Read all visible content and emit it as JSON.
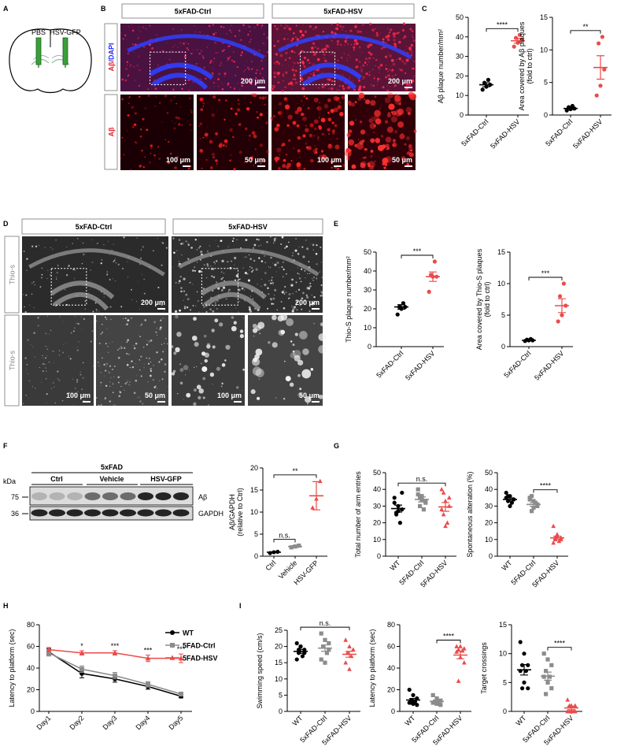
{
  "figure": {
    "panel_labels": [
      "A",
      "B",
      "C",
      "D",
      "E",
      "F",
      "G",
      "H",
      "I"
    ],
    "a": {
      "labels": [
        "PBS",
        "HSV-GFP"
      ]
    },
    "b": {
      "headers": [
        "5xFAD-Ctrl",
        "5xFAD-HSV"
      ],
      "row_labels": [
        [
          "Aβ",
          "/DAPI"
        ],
        [
          "Aβ"
        ]
      ],
      "scale_bars": [
        "200 μm",
        "200 μm",
        "100 μm",
        "50 μm",
        "100 μm",
        "50 μm"
      ]
    },
    "d": {
      "headers": [
        "5xFAD-Ctrl",
        "5xFAD-HSV"
      ],
      "row_labels": [
        "Thio-s",
        "Thio-s"
      ],
      "scale_bars": [
        "200 μm",
        "200 μm",
        "100 μm",
        "50 μm",
        "100 μm",
        "50 μm"
      ]
    },
    "f": {
      "group": "5xFAD",
      "lanes": [
        "Ctrl",
        "Vehicle",
        "HSV-GFP"
      ],
      "kda_label": "kDa",
      "markers": [
        75,
        36
      ],
      "bands": [
        "Aβ",
        "GAPDH"
      ]
    }
  },
  "chart_data": [
    {
      "type": "dot",
      "ylabel": [
        "Aβ plaque number/mm²"
      ],
      "categories": [
        "5xFAD-Ctrl",
        "5xFAD-HSV"
      ],
      "colors": [
        "#000000",
        "#eb4b4b"
      ],
      "markers": [
        "circle",
        "circle"
      ],
      "values": [
        15.5,
        38
      ],
      "errors": [
        1.0,
        1.2
      ],
      "points": [
        [
          13,
          14.5,
          15.5,
          16.5,
          18
        ],
        [
          35,
          37,
          38.5,
          39.5,
          41
        ]
      ],
      "ylim": [
        0,
        50
      ],
      "yticks": [
        0,
        10,
        20,
        30,
        40,
        50
      ],
      "significance": [
        {
          "label": "****",
          "groups": [
            "5xFAD-Ctrl",
            "5xFAD-HSV"
          ]
        }
      ]
    },
    {
      "type": "dot",
      "ylabel": [
        "Area covered by Aβ plaques",
        "(fold to ctrl)"
      ],
      "categories": [
        "5xFAD-Ctrl",
        "5xFAD-HSV"
      ],
      "colors": [
        "#000000",
        "#eb4b4b"
      ],
      "markers": [
        "circle",
        "circle"
      ],
      "values": [
        1.0,
        7.3
      ],
      "errors": [
        0.15,
        1.8
      ],
      "points": [
        [
          0.7,
          0.9,
          1.0,
          1.2,
          1.4
        ],
        [
          3,
          4.5,
          7,
          11,
          12
        ]
      ],
      "ylim": [
        0,
        15
      ],
      "yticks": [
        0,
        5,
        10,
        15
      ],
      "significance": [
        {
          "label": "**",
          "groups": [
            "5xFAD-Ctrl",
            "5xFAD-HSV"
          ]
        }
      ]
    },
    {
      "type": "dot",
      "ylabel": [
        "Thio-S plaque number/mm²"
      ],
      "categories": [
        "5xFAD-Ctrl",
        "5xFAD-HSV"
      ],
      "colors": [
        "#000000",
        "#eb4b4b"
      ],
      "markers": [
        "circle",
        "circle"
      ],
      "values": [
        21,
        37
      ],
      "errors": [
        1.2,
        2.5
      ],
      "points": [
        [
          17,
          20,
          21,
          21,
          23
        ],
        [
          29,
          37,
          37,
          38,
          45
        ]
      ],
      "ylim": [
        0,
        50
      ],
      "yticks": [
        0,
        10,
        20,
        30,
        40,
        50
      ],
      "significance": [
        {
          "label": "***",
          "groups": [
            "5xFAD-Ctrl",
            "5xFAD-HSV"
          ]
        }
      ]
    },
    {
      "type": "dot",
      "ylabel": [
        "Area covered by Thio-S plaques",
        "(fold to ctrl)"
      ],
      "categories": [
        "5xFAD-Ctrl",
        "5xFAD-HSV"
      ],
      "colors": [
        "#000000",
        "#eb4b4b"
      ],
      "markers": [
        "circle",
        "circle"
      ],
      "values": [
        1.0,
        6.5
      ],
      "errors": [
        0.05,
        1.1
      ],
      "points": [
        [
          0.9,
          1.0,
          1.0,
          1.1,
          1.2
        ],
        [
          4,
          5,
          6.5,
          8,
          10
        ]
      ],
      "ylim": [
        0,
        15
      ],
      "yticks": [
        0,
        5,
        10,
        15
      ],
      "significance": [
        {
          "label": "***",
          "groups": [
            "5xFAD-Ctrl",
            "5xFAD-HSV"
          ]
        }
      ]
    },
    {
      "type": "dot",
      "ylabel": [
        "Aβ/GAPDH",
        "(relative to Ctrl)"
      ],
      "categories": [
        "Ctrl",
        "Vehicle",
        "HSV-GFP"
      ],
      "colors": [
        "#000000",
        "#8c8c8c",
        "#eb4b4b"
      ],
      "markers": [
        "circle",
        "square",
        "triangle"
      ],
      "values": [
        0.9,
        2.2,
        13.7
      ],
      "errors": [
        0.1,
        0.2,
        3.2
      ],
      "points": [
        [
          0.7,
          0.9,
          1.0
        ],
        [
          2.0,
          2.2,
          2.4
        ],
        [
          11,
          13,
          17
        ]
      ],
      "ylim": [
        0,
        20
      ],
      "yticks": [
        0,
        5,
        10,
        15,
        20
      ],
      "significance": [
        {
          "label": "n.s.",
          "groups": [
            "Ctrl",
            "Vehicle"
          ]
        },
        {
          "label": "**",
          "groups": [
            "Ctrl",
            "HSV-GFP"
          ]
        }
      ]
    },
    {
      "type": "dot",
      "ylabel": [
        "Total number of arm entries"
      ],
      "categories": [
        "WT",
        "5FAD-Ctrl",
        "5FAD-HSV"
      ],
      "colors": [
        "#000000",
        "#8c8c8c",
        "#eb4b4b"
      ],
      "markers": [
        "circle",
        "square",
        "triangle"
      ],
      "values": [
        28.5,
        34,
        29.5
      ],
      "errors": [
        2.1,
        1.5,
        2.6
      ],
      "points": [
        [
          35,
          30,
          28,
          25,
          20,
          32,
          27,
          38,
          26
        ],
        [
          40,
          36,
          33,
          30,
          28,
          37,
          34,
          32,
          35
        ],
        [
          40,
          33,
          30,
          25,
          20,
          28,
          18,
          35,
          38
        ]
      ],
      "ylim": [
        0,
        50
      ],
      "yticks": [
        0,
        10,
        20,
        30,
        40,
        50
      ],
      "significance": [
        {
          "label": "n.s.",
          "groups": [
            "WT",
            "5FAD-HSV"
          ]
        }
      ]
    },
    {
      "type": "dot",
      "ylabel": [
        "Spontaneous alteration (%)"
      ],
      "categories": [
        "WT",
        "5FAD-Ctrl",
        "5FAD-HSV"
      ],
      "colors": [
        "#000000",
        "#8c8c8c",
        "#eb4b4b"
      ],
      "markers": [
        "circle",
        "square",
        "triangle"
      ],
      "values": [
        34,
        31,
        11
      ],
      "errors": [
        0.9,
        1.1,
        1.0
      ],
      "points": [
        [
          38,
          36,
          34,
          33,
          32,
          35,
          30,
          34,
          36
        ],
        [
          35,
          33,
          30,
          27,
          32,
          34,
          29,
          31,
          36
        ],
        [
          18,
          13,
          11,
          10,
          9,
          8,
          12,
          10,
          11
        ]
      ],
      "ylim": [
        0,
        50
      ],
      "yticks": [
        0,
        10,
        20,
        30,
        40,
        50
      ],
      "significance": [
        {
          "label": "****",
          "groups": [
            "5FAD-Ctrl",
            "5FAD-HSV"
          ]
        }
      ]
    },
    {
      "type": "line",
      "ylabel": [
        "Latency to platform (sec)"
      ],
      "categories": [
        "Day1",
        "Day2",
        "Day3",
        "Day4",
        "Day5"
      ],
      "series": [
        {
          "name": "WT",
          "color": "#000000",
          "marker": "circle",
          "values": [
            55,
            35,
            30,
            23,
            14
          ],
          "errors": [
            3,
            4,
            3,
            2.5,
            1.5
          ]
        },
        {
          "name": "5FAD-Ctrl",
          "color": "#8c8c8c",
          "marker": "square",
          "values": [
            54,
            39,
            33,
            25,
            16
          ],
          "errors": [
            3,
            3,
            3,
            2.5,
            1.5
          ]
        },
        {
          "name": "5FAD-HSV",
          "color": "#eb4b4b",
          "marker": "triangle",
          "values": [
            57,
            54,
            54,
            49,
            49
          ],
          "errors": [
            2,
            2,
            2,
            3,
            4
          ]
        }
      ],
      "ylim": [
        0,
        80
      ],
      "yticks": [
        0,
        20,
        40,
        60,
        80
      ],
      "legend": "upper right",
      "annotations": [
        {
          "label": "*",
          "category": "Day2"
        },
        {
          "label": "***",
          "category": "Day3"
        },
        {
          "label": "***",
          "category": "Day4"
        },
        {
          "label": "***",
          "category": "Day5"
        }
      ]
    },
    {
      "type": "dot",
      "ylabel": [
        "Swimming speed (cm/s)"
      ],
      "categories": [
        "WT",
        "5xFAD-Ctrl",
        "5xFAD-HSV"
      ],
      "colors": [
        "#000000",
        "#8c8c8c",
        "#eb4b4b"
      ],
      "markers": [
        "circle",
        "square",
        "triangle"
      ],
      "values": [
        18.5,
        19.5,
        17.6
      ],
      "errors": [
        0.6,
        1.0,
        0.9
      ],
      "points": [
        [
          21,
          20,
          19,
          18,
          17,
          16,
          20,
          18,
          19
        ],
        [
          24,
          22,
          21,
          20,
          18,
          16,
          15,
          19,
          20
        ],
        [
          22,
          20,
          19,
          18,
          17,
          15,
          13,
          19,
          18
        ]
      ],
      "ylim": [
        0,
        25
      ],
      "yticks": [
        0,
        5,
        10,
        15,
        20,
        25
      ],
      "significance": [
        {
          "label": "n.s.",
          "groups": [
            "WT",
            "5xFAD-HSV"
          ]
        }
      ]
    },
    {
      "type": "dot",
      "ylabel": [
        "Latency to platform (sec)"
      ],
      "categories": [
        "WT",
        "5xFAD-Ctrl",
        "5xFAD-HSV"
      ],
      "colors": [
        "#000000",
        "#8c8c8c",
        "#eb4b4b"
      ],
      "markers": [
        "circle",
        "square",
        "triangle"
      ],
      "values": [
        10.5,
        9.2,
        52
      ],
      "errors": [
        1.4,
        1.0,
        3.4
      ],
      "points": [
        [
          20,
          15,
          12,
          10,
          9,
          8,
          7,
          6,
          8
        ],
        [
          15,
          12,
          10,
          9,
          8,
          8,
          7,
          6,
          8
        ],
        [
          60,
          60,
          58,
          57,
          56,
          55,
          50,
          45,
          28
        ]
      ],
      "ylim": [
        0,
        80
      ],
      "yticks": [
        0,
        20,
        40,
        60,
        80
      ],
      "significance": [
        {
          "label": "****",
          "groups": [
            "5xFAD-Ctrl",
            "5xFAD-HSV"
          ]
        }
      ]
    },
    {
      "type": "dot",
      "ylabel": [
        "Target crossings"
      ],
      "categories": [
        "WT",
        "5xFAD-Ctrl",
        "5xFAD-HSV"
      ],
      "colors": [
        "#000000",
        "#8c8c8c",
        "#eb4b4b"
      ],
      "markers": [
        "circle",
        "square",
        "triangle"
      ],
      "values": [
        7.2,
        6.1,
        0.6
      ],
      "errors": [
        0.9,
        0.7,
        0.3
      ],
      "points": [
        [
          12,
          10,
          8,
          8,
          7,
          7,
          5,
          4,
          4
        ],
        [
          10,
          9,
          8,
          7,
          6,
          6,
          5,
          4,
          3
        ],
        [
          2,
          1,
          1,
          0,
          0,
          0,
          0,
          0,
          1
        ]
      ],
      "ylim": [
        0,
        15
      ],
      "yticks": [
        0,
        5,
        10,
        15
      ],
      "significance": [
        {
          "label": "****",
          "groups": [
            "5xFAD-Ctrl",
            "5xFAD-HSV"
          ]
        }
      ]
    }
  ]
}
